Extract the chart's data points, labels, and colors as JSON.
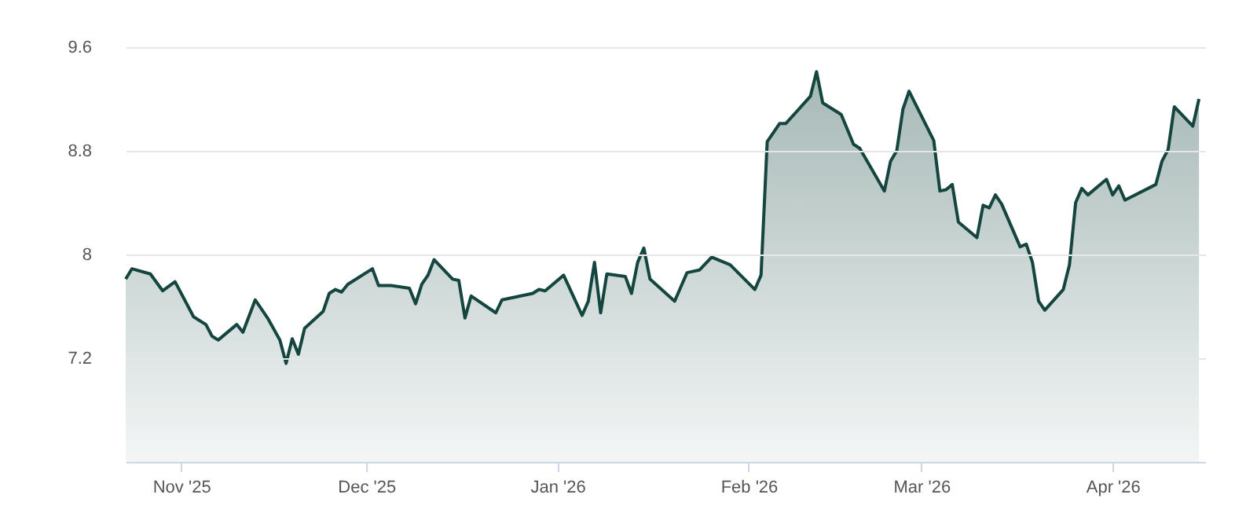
{
  "chart_data": {
    "type": "area",
    "color": "#14453f",
    "grid": "y",
    "xlim": [
      "2025-10-23",
      "2026-04-16"
    ],
    "xticks": [
      {
        "value": "2025-11-01",
        "label": "Nov '25"
      },
      {
        "value": "2025-12-01",
        "label": "Dec '25"
      },
      {
        "value": "2026-01-01",
        "label": "Jan '26"
      },
      {
        "value": "2026-02-01",
        "label": "Feb '26"
      },
      {
        "value": "2026-03-01",
        "label": "Mar '26"
      },
      {
        "value": "2026-04-01",
        "label": "Apr '26"
      }
    ],
    "ylim": [
      6.4,
      9.6
    ],
    "yticks": [
      7.2,
      8,
      8.8,
      9.6
    ],
    "x": [
      "2025-10-23",
      "2025-10-24",
      "2025-10-27",
      "2025-10-29",
      "2025-10-31",
      "2025-11-03",
      "2025-11-05",
      "2025-11-06",
      "2025-11-07",
      "2025-11-10",
      "2025-11-11",
      "2025-11-13",
      "2025-11-15",
      "2025-11-17",
      "2025-11-18",
      "2025-11-19",
      "2025-11-20",
      "2025-11-21",
      "2025-11-24",
      "2025-11-25",
      "2025-11-26",
      "2025-11-27",
      "2025-11-28",
      "2025-12-02",
      "2025-12-03",
      "2025-12-05",
      "2025-12-08",
      "2025-12-09",
      "2025-12-10",
      "2025-12-11",
      "2025-12-12",
      "2025-12-15",
      "2025-12-16",
      "2025-12-17",
      "2025-12-18",
      "2025-12-22",
      "2025-12-23",
      "2025-12-28",
      "2025-12-29",
      "2025-12-30",
      "2026-01-02",
      "2026-01-05",
      "2026-01-06",
      "2026-01-07",
      "2026-01-08",
      "2026-01-09",
      "2026-01-12",
      "2026-01-13",
      "2026-01-14",
      "2026-01-15",
      "2026-01-16",
      "2026-01-20",
      "2026-01-21",
      "2026-01-22",
      "2026-01-24",
      "2026-01-26",
      "2026-01-29",
      "2026-02-02",
      "2026-02-03",
      "2026-02-04",
      "2026-02-06",
      "2026-02-07",
      "2026-02-11",
      "2026-02-12",
      "2026-02-13",
      "2026-02-16",
      "2026-02-18",
      "2026-02-19",
      "2026-02-23",
      "2026-02-24",
      "2026-02-25",
      "2026-02-26",
      "2026-02-27",
      "2026-03-03",
      "2026-03-04",
      "2026-03-05",
      "2026-03-06",
      "2026-03-07",
      "2026-03-10",
      "2026-03-11",
      "2026-03-12",
      "2026-03-13",
      "2026-03-14",
      "2026-03-17",
      "2026-03-18",
      "2026-03-19",
      "2026-03-20",
      "2026-03-21",
      "2026-03-24",
      "2026-03-25",
      "2026-03-26",
      "2026-03-27",
      "2026-03-28",
      "2026-03-31",
      "2026-04-01",
      "2026-04-02",
      "2026-04-03",
      "2026-04-08",
      "2026-04-09",
      "2026-04-10",
      "2026-04-11",
      "2026-04-14",
      "2026-04-15"
    ],
    "values": [
      7.81,
      7.89,
      7.85,
      7.72,
      7.79,
      7.52,
      7.46,
      7.37,
      7.34,
      7.46,
      7.4,
      7.65,
      7.51,
      7.34,
      7.16,
      7.35,
      7.23,
      7.43,
      7.56,
      7.7,
      7.73,
      7.71,
      7.77,
      7.89,
      7.76,
      7.76,
      7.74,
      7.62,
      7.77,
      7.84,
      7.96,
      7.81,
      7.8,
      7.51,
      7.68,
      7.55,
      7.65,
      7.7,
      7.73,
      7.72,
      7.84,
      7.53,
      7.64,
      7.94,
      7.55,
      7.85,
      7.83,
      7.7,
      7.94,
      8.05,
      7.81,
      7.64,
      7.75,
      7.86,
      7.88,
      7.98,
      7.92,
      7.73,
      7.84,
      8.87,
      9.01,
      9.01,
      9.22,
      9.41,
      9.17,
      9.08,
      8.85,
      8.82,
      8.49,
      8.72,
      8.8,
      9.12,
      9.26,
      8.88,
      8.49,
      8.5,
      8.54,
      8.25,
      8.13,
      8.38,
      8.36,
      8.46,
      8.39,
      8.06,
      8.08,
      7.94,
      7.64,
      7.57,
      7.73,
      7.92,
      8.4,
      8.51,
      8.46,
      8.58,
      8.46,
      8.53,
      8.42,
      8.54,
      8.72,
      8.81,
      9.14,
      8.99,
      9.2
    ]
  }
}
